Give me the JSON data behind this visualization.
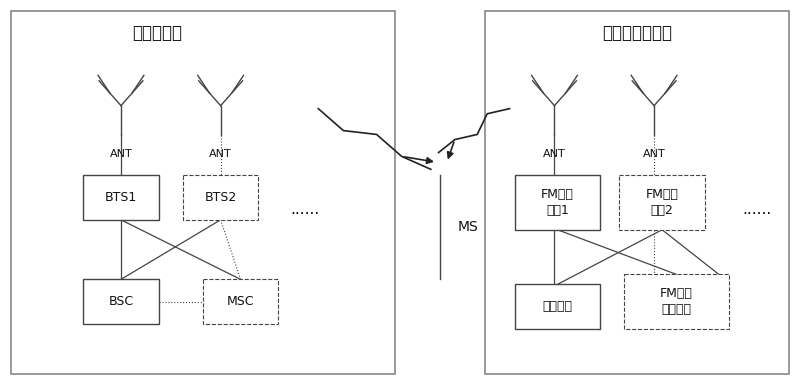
{
  "bg_color": "#ffffff",
  "panel_bg": "#ffffff",
  "panel_edge": "#999999",
  "box_color": "#ffffff",
  "box_edge": "#444444",
  "line_color": "#444444",
  "text_color": "#111111",
  "left_panel_title": "传统的基站",
  "right_panel_title": "传统的广播系统",
  "ms_label": "MS",
  "font_size_title": 12,
  "font_size_box": 9,
  "font_size_ant": 8,
  "font_size_ms": 10,
  "font_size_dots": 11
}
